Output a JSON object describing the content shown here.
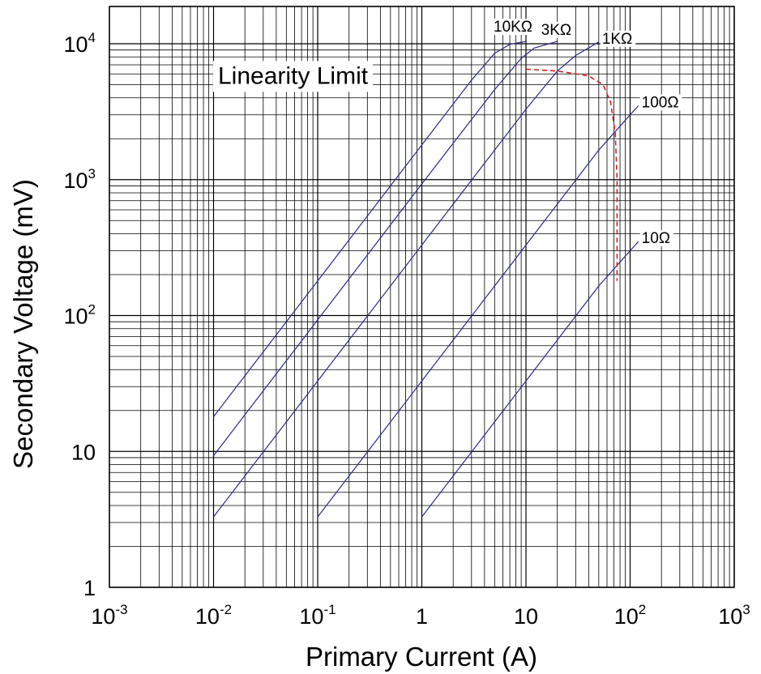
{
  "chart_data": {
    "type": "line",
    "xlabel": "Primary Current (A)",
    "ylabel": "Secondary Voltage (mV)",
    "x_scale": "log",
    "y_scale": "log",
    "xlim": [
      0.001,
      1000
    ],
    "ylim": [
      1,
      20000
    ],
    "grid": true,
    "x_ticks": [
      {
        "value": 0.001,
        "base": "10",
        "exp": "-3"
      },
      {
        "value": 0.01,
        "base": "10",
        "exp": "-2"
      },
      {
        "value": 0.1,
        "base": "10",
        "exp": "-1"
      },
      {
        "value": 1,
        "base": "1",
        "exp": ""
      },
      {
        "value": 10,
        "base": "10",
        "exp": ""
      },
      {
        "value": 100,
        "base": "10",
        "exp": "2"
      },
      {
        "value": 1000,
        "base": "10",
        "exp": "3"
      }
    ],
    "y_ticks": [
      {
        "value": 1,
        "base": "1",
        "exp": ""
      },
      {
        "value": 10,
        "base": "10",
        "exp": ""
      },
      {
        "value": 100,
        "base": "10",
        "exp": "2"
      },
      {
        "value": 1000,
        "base": "10",
        "exp": "3"
      },
      {
        "value": 10000,
        "base": "10",
        "exp": "4"
      }
    ],
    "series": [
      {
        "name": "10KΩ",
        "color": "#2a2a8c",
        "x": [
          0.01,
          0.1,
          1,
          3,
          5,
          7,
          10
        ],
        "y": [
          18,
          180,
          1800,
          5400,
          8500,
          9900,
          10400
        ]
      },
      {
        "name": "3KΩ",
        "color": "#2a2a8c",
        "x": [
          0.01,
          0.1,
          1,
          5,
          9,
          12,
          20
        ],
        "y": [
          9.3,
          93,
          930,
          4600,
          7800,
          9300,
          10400
        ]
      },
      {
        "name": "1KΩ",
        "color": "#2a2a8c",
        "x": [
          0.01,
          0.1,
          1,
          10,
          20,
          30,
          50
        ],
        "y": [
          3.3,
          33,
          330,
          3300,
          6300,
          8200,
          10300
        ]
      },
      {
        "name": "100Ω",
        "color": "#2a2a8c",
        "x": [
          0.1,
          1,
          10,
          50,
          100,
          120
        ],
        "y": [
          3.3,
          33,
          330,
          1650,
          3000,
          3500
        ]
      },
      {
        "name": "10Ω",
        "color": "#2a2a8c",
        "x": [
          1,
          10,
          50,
          100,
          120
        ],
        "y": [
          3.3,
          33,
          165,
          300,
          350
        ]
      }
    ],
    "annotations": [
      {
        "label": "Linearity Limit",
        "color": "#d42020",
        "style": "dashed",
        "x": [
          10,
          20,
          40,
          55,
          65,
          72,
          75,
          75
        ],
        "y": [
          6500,
          6300,
          5800,
          5000,
          3700,
          2200,
          1000,
          180
        ]
      }
    ]
  }
}
